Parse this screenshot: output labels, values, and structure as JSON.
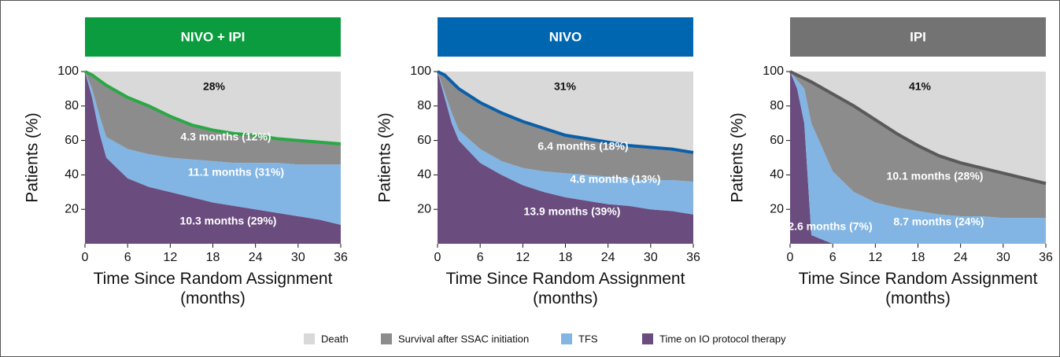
{
  "chart_data": [
    {
      "type": "area",
      "title": "NIVO + IPI",
      "title_color": "#0a9c3e",
      "line_color": "#2aa845",
      "ylabel": "Patients (%)",
      "xlabel": "Time Since Random Assignment (months)",
      "x": [
        0,
        1,
        2,
        3,
        6,
        9,
        12,
        15,
        18,
        21,
        24,
        27,
        30,
        33,
        36
      ],
      "xlim": [
        0,
        36
      ],
      "xticks": [
        0,
        6,
        12,
        18,
        24,
        30,
        36
      ],
      "ylim": [
        0,
        100
      ],
      "yticks": [
        20,
        40,
        60,
        80,
        100
      ],
      "series": [
        {
          "name": "Time on IO protocol therapy",
          "color": "#6a4c7f",
          "values": [
            100,
            85,
            65,
            50,
            38,
            33,
            30,
            27,
            24,
            22,
            20,
            18,
            16,
            14,
            11
          ]
        },
        {
          "name": "TFS",
          "color": "#82b5e3",
          "values": [
            0,
            5,
            10,
            12,
            17,
            19,
            20,
            22,
            24,
            25,
            27,
            29,
            30,
            32,
            35
          ]
        },
        {
          "name": "Survival after SSAC initiation",
          "color": "#8c8c8c",
          "values": [
            0,
            8,
            20,
            30,
            30,
            28,
            24,
            20,
            18,
            17,
            16,
            14,
            14,
            13,
            12
          ]
        },
        {
          "name": "Death",
          "color": "#d9d9d9",
          "values": [
            0,
            2,
            5,
            8,
            15,
            20,
            26,
            31,
            34,
            36,
            37,
            39,
            40,
            41,
            42
          ]
        }
      ],
      "annotations": [
        "28%",
        "4.3 months (12%)",
        "11.1 months (31%)",
        "10.3 months (29%)"
      ]
    },
    {
      "type": "area",
      "title": "NIVO",
      "title_color": "#0066b0",
      "line_color": "#0b5fa8",
      "ylabel": "Patients (%)",
      "xlabel": "Time Since Random Assignment (months)",
      "x": [
        0,
        1,
        2,
        3,
        6,
        9,
        12,
        15,
        18,
        21,
        24,
        27,
        30,
        33,
        36
      ],
      "xlim": [
        0,
        36
      ],
      "xticks": [
        0,
        6,
        12,
        18,
        24,
        30,
        36
      ],
      "ylim": [
        0,
        100
      ],
      "yticks": [
        20,
        40,
        60,
        80,
        100
      ],
      "series": [
        {
          "name": "Time on IO protocol therapy",
          "color": "#6a4c7f",
          "values": [
            100,
            85,
            70,
            60,
            47,
            40,
            34,
            30,
            27,
            25,
            23,
            22,
            20,
            19,
            17
          ]
        },
        {
          "name": "TFS",
          "color": "#82b5e3",
          "values": [
            0,
            3,
            6,
            6,
            8,
            8,
            10,
            12,
            14,
            15,
            16,
            16,
            17,
            18,
            19
          ]
        },
        {
          "name": "Survival after SSAC initiation",
          "color": "#8c8c8c",
          "values": [
            0,
            10,
            18,
            24,
            27,
            28,
            27,
            25,
            22,
            21,
            20,
            19,
            19,
            18,
            17
          ]
        },
        {
          "name": "Death",
          "color": "#d9d9d9",
          "values": [
            0,
            2,
            6,
            10,
            18,
            24,
            29,
            33,
            37,
            39,
            41,
            43,
            44,
            45,
            47
          ]
        }
      ],
      "annotations": [
        "31%",
        "6.4 months (18%)",
        "4.6 months (13%)",
        "13.9 months (39%)"
      ]
    },
    {
      "type": "area",
      "title": "IPI",
      "title_color": "#737373",
      "line_color": "#5a5a5a",
      "ylabel": "Patients (%)",
      "xlabel": "Time Since Random Assignment (months)",
      "x": [
        0,
        1,
        2,
        3,
        6,
        9,
        12,
        15,
        18,
        21,
        24,
        27,
        30,
        33,
        36
      ],
      "xlim": [
        0,
        36
      ],
      "xticks": [
        0,
        6,
        12,
        18,
        24,
        30,
        36
      ],
      "ylim": [
        0,
        100
      ],
      "yticks": [
        20,
        40,
        60,
        80,
        100
      ],
      "series": [
        {
          "name": "Time on IO protocol therapy",
          "color": "#6a4c7f",
          "values": [
            100,
            90,
            70,
            5,
            0,
            0,
            0,
            0,
            0,
            0,
            0,
            0,
            0,
            0,
            0
          ]
        },
        {
          "name": "TFS",
          "color": "#82b5e3",
          "values": [
            0,
            5,
            20,
            65,
            42,
            30,
            24,
            21,
            19,
            17,
            16,
            16,
            15,
            15,
            15
          ]
        },
        {
          "name": "Survival after SSAC initiation",
          "color": "#8c8c8c",
          "values": [
            0,
            3,
            6,
            24,
            45,
            50,
            48,
            43,
            38,
            34,
            31,
            28,
            26,
            23,
            20
          ]
        },
        {
          "name": "Death",
          "color": "#d9d9d9",
          "values": [
            0,
            2,
            4,
            6,
            13,
            20,
            28,
            36,
            43,
            49,
            53,
            56,
            59,
            62,
            65
          ]
        }
      ],
      "annotations": [
        "41%",
        "10.1 months (28%)",
        "2.6 months (7%)",
        "8.7 months (24%)"
      ]
    }
  ]
}
